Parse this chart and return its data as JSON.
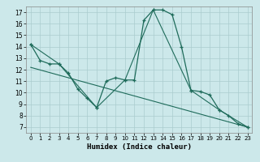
{
  "xlabel": "Humidex (Indice chaleur)",
  "ylabel": "",
  "bg_color": "#cce8ea",
  "grid_color": "#aaccce",
  "line_color": "#1e6b5a",
  "xlim": [
    -0.5,
    23.5
  ],
  "ylim": [
    6.5,
    17.5
  ],
  "xticks": [
    0,
    1,
    2,
    3,
    4,
    5,
    6,
    7,
    8,
    9,
    10,
    11,
    12,
    13,
    14,
    15,
    16,
    17,
    18,
    19,
    20,
    21,
    22,
    23
  ],
  "yticks": [
    7,
    8,
    9,
    10,
    11,
    12,
    13,
    14,
    15,
    16,
    17
  ],
  "series": {
    "line1_x": [
      0,
      1,
      2,
      3,
      4,
      5,
      6,
      7,
      8,
      9,
      10,
      11,
      12,
      13,
      14,
      15,
      16,
      17,
      18,
      19,
      20,
      21,
      22,
      23
    ],
    "line1_y": [
      14.2,
      12.8,
      12.5,
      12.5,
      11.7,
      10.3,
      9.5,
      8.7,
      11.0,
      11.3,
      11.1,
      11.1,
      16.3,
      17.2,
      17.2,
      16.8,
      14.0,
      10.2,
      10.1,
      9.8,
      8.5,
      8.0,
      7.3,
      7.0
    ],
    "line2_x": [
      0,
      3,
      7,
      10,
      13,
      17,
      20,
      23
    ],
    "line2_y": [
      14.2,
      12.5,
      8.7,
      11.1,
      17.2,
      10.2,
      8.5,
      7.0
    ],
    "line3_x": [
      0,
      23
    ],
    "line3_y": [
      12.2,
      7.0
    ]
  }
}
